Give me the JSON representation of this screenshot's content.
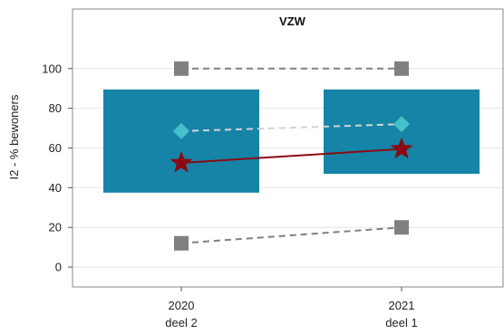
{
  "chart_data": {
    "type": "box-range",
    "title": "VZW",
    "ylabel": "I2 - % bewoners",
    "xlabel": "",
    "ylim": [
      -10,
      130
    ],
    "y_ticks": [
      0,
      20,
      40,
      60,
      80,
      100
    ],
    "grid": true,
    "categories": [
      {
        "top": "2020",
        "bottom": "deel 2"
      },
      {
        "top": "2021",
        "bottom": "deel 1"
      }
    ],
    "boxes": [
      {
        "low": 37.5,
        "high": 89.5
      },
      {
        "low": 47,
        "high": 89.5
      }
    ],
    "series": [
      {
        "role": "max",
        "marker": "square",
        "line": "dashed",
        "values": [
          100,
          100
        ]
      },
      {
        "role": "mean",
        "marker": "diamond",
        "line": "dashed",
        "values": [
          68.5,
          72
        ]
      },
      {
        "role": "median",
        "marker": "star",
        "line": "solid",
        "values": [
          52.5,
          59.5
        ]
      },
      {
        "role": "min",
        "marker": "square",
        "line": "dashed",
        "values": [
          12,
          20
        ]
      }
    ],
    "colors": {
      "box": "#1584a7",
      "max_min": "#808080",
      "mean_marker": "#45c1c9",
      "mean_line": "#d3d3d3",
      "median": "#8b0a12",
      "grid": "#e6e6e6",
      "frame": "#888888"
    }
  }
}
